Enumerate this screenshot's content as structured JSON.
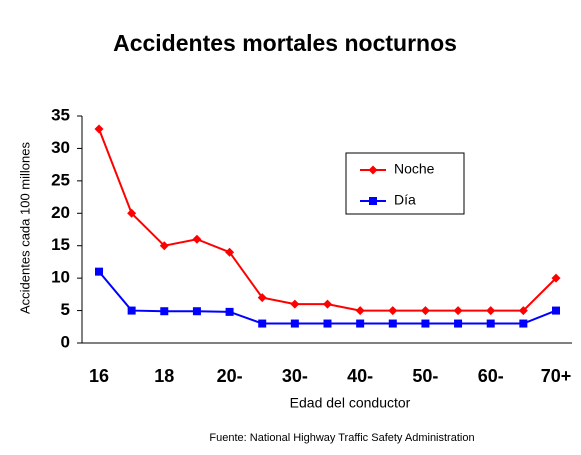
{
  "chart_data": {
    "type": "line",
    "title": "Accidentes mortales nocturnos",
    "y_label": "Accidentes  cada 100 millones",
    "x_label": "Edad del conductor",
    "source": "Fuente: National Highway Traffic Safety Administration",
    "categories": [
      "16",
      null,
      "18",
      null,
      "20-",
      null,
      "30-",
      null,
      "40-",
      null,
      "50-",
      null,
      "60-",
      null,
      "70+"
    ],
    "series": [
      {
        "name": "Noche",
        "color": "#ff0000",
        "marker": "diamond",
        "values": [
          33,
          20,
          15,
          16,
          14,
          7,
          6,
          6,
          5,
          5,
          5,
          5,
          5,
          5,
          10
        ]
      },
      {
        "name": "Día",
        "color": "#0000ff",
        "marker": "square",
        "values": [
          11,
          5,
          4.9,
          4.9,
          4.8,
          3,
          3,
          3,
          3,
          3,
          3,
          3,
          3,
          3,
          5
        ]
      }
    ],
    "ylim": [
      0,
      35
    ],
    "yticks": [
      0,
      5,
      10,
      15,
      20,
      25,
      30,
      35
    ],
    "grid": false,
    "legend": "upper right"
  }
}
